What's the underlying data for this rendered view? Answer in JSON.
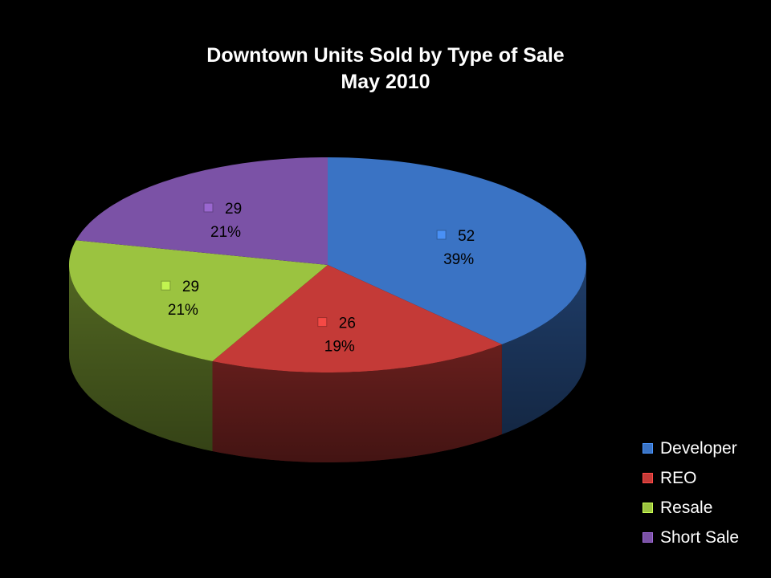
{
  "chart_data": {
    "type": "pie",
    "title": "Downtown Units Sold by Type of Sale",
    "subtitle": "May 2010",
    "legend_position": "bottom-right",
    "slices": [
      {
        "label": "Developer",
        "value": 52,
        "percent": "39%",
        "color": "#3A73C4"
      },
      {
        "label": "REO",
        "value": 26,
        "percent": "19%",
        "color": "#C43A37"
      },
      {
        "label": "Resale",
        "value": 29,
        "percent": "21%",
        "color": "#9BC340"
      },
      {
        "label": "Short Sale",
        "value": 29,
        "percent": "21%",
        "color": "#7B52A6"
      }
    ]
  }
}
